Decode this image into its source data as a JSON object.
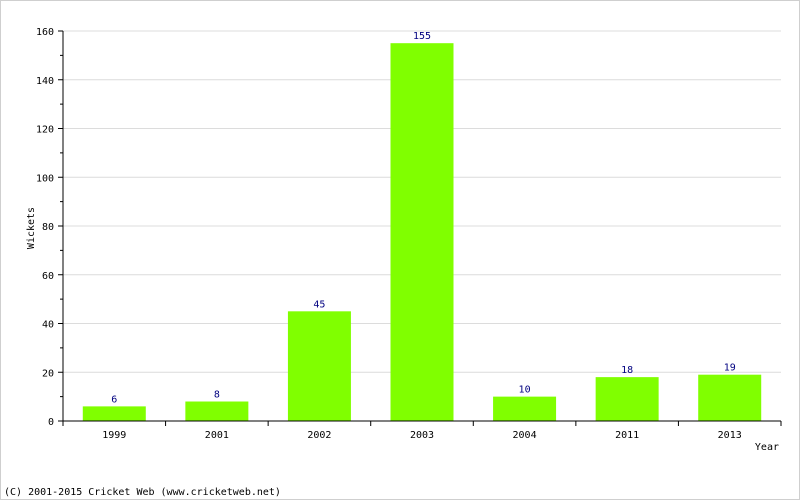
{
  "chart_data": {
    "type": "bar",
    "categories": [
      "1999",
      "2001",
      "2002",
      "2003",
      "2004",
      "2011",
      "2013"
    ],
    "values": [
      6,
      8,
      45,
      155,
      10,
      18,
      19
    ],
    "xlabel": "Year",
    "ylabel": "Wickets",
    "ylim": [
      0,
      160
    ],
    "yticks": [
      0,
      20,
      40,
      60,
      80,
      100,
      120,
      140,
      160
    ],
    "grid": true,
    "legend": "none",
    "colors": {
      "bar": "#80ff00",
      "data_label": "#000080",
      "gridline": "#dcdcdc",
      "axis": "#000000"
    }
  },
  "footer": {
    "copyright": "(C) 2001-2015 Cricket Web (www.cricketweb.net)"
  }
}
